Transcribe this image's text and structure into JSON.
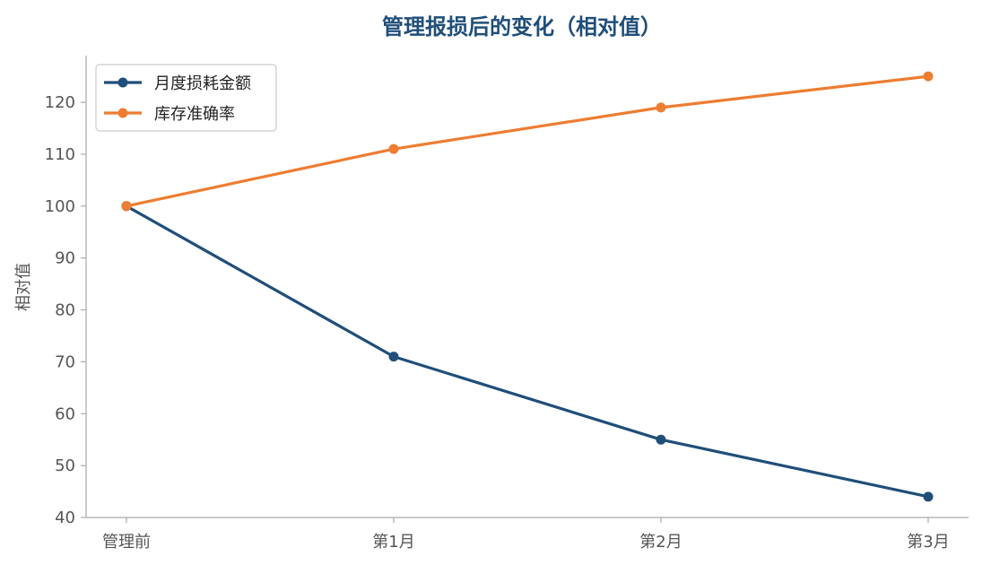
{
  "chart_data": {
    "type": "line",
    "title": "管理报损后的变化（相对值）",
    "ylabel": "相对值",
    "xlabel": "",
    "categories": [
      "管理前",
      "第1月",
      "第2月",
      "第3月"
    ],
    "yticks": [
      40,
      50,
      60,
      70,
      80,
      90,
      100,
      110,
      120
    ],
    "ylim": [
      40,
      129
    ],
    "legend": "top-left",
    "grid": false,
    "series": [
      {
        "name": "月度损耗金额",
        "color": "#1f4e79",
        "values": [
          100,
          71,
          55,
          44
        ]
      },
      {
        "name": "库存准确率",
        "color": "#ed7d31",
        "values": [
          100,
          111,
          119,
          125
        ]
      }
    ]
  },
  "colors": {
    "title": "#1f4e79",
    "axis": "#aaaaaa",
    "legend_border": "#cccccc"
  }
}
